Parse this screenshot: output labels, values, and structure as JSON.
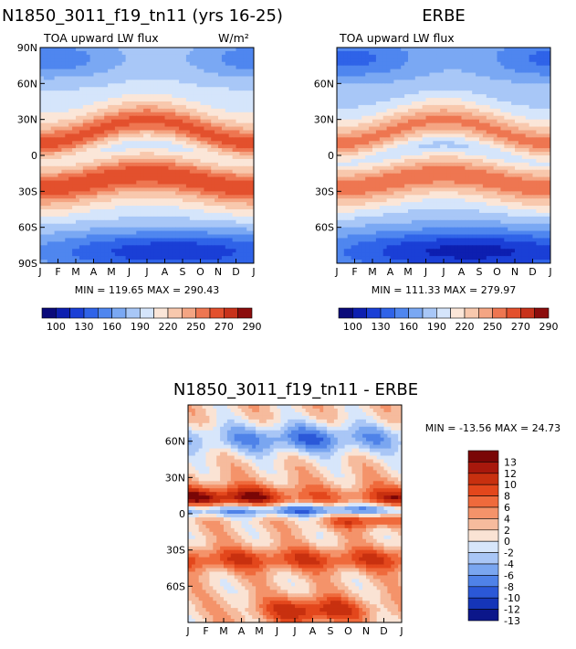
{
  "chart_data": [
    {
      "type": "heatmap",
      "title": "N1850_3011_f19_tn11 (yrs 16-25)",
      "subtitle": "TOA upward LW flux",
      "units": "W/m²",
      "x_ticks": [
        "J",
        "F",
        "M",
        "A",
        "M",
        "J",
        "J",
        "A",
        "S",
        "O",
        "N",
        "D",
        "J"
      ],
      "y_ticks": [
        "90N",
        "60N",
        "30N",
        "0",
        "30S",
        "60S",
        "90S"
      ],
      "y_range": [
        -90,
        90
      ],
      "min_max": "MIN = 119.65 MAX = 290.43",
      "colorbar_labels": [
        "100",
        "130",
        "160",
        "190",
        "220",
        "250",
        "270",
        "290"
      ]
    },
    {
      "type": "heatmap",
      "title": "ERBE",
      "subtitle": "TOA upward LW flux",
      "x_ticks": [
        "J",
        "F",
        "M",
        "A",
        "M",
        "J",
        "J",
        "A",
        "S",
        "O",
        "N",
        "D",
        "J"
      ],
      "y_ticks": [
        "60N",
        "30N",
        "0",
        "30S",
        "60S"
      ],
      "y_range": [
        -90,
        90
      ],
      "min_max": "MIN = 111.33 MAX = 279.97",
      "colorbar_labels": [
        "100",
        "130",
        "160",
        "190",
        "220",
        "250",
        "270",
        "290"
      ]
    },
    {
      "type": "heatmap",
      "title": "N1850_3011_f19_tn11 - ERBE",
      "x_ticks": [
        "J",
        "F",
        "M",
        "A",
        "M",
        "J",
        "J",
        "A",
        "S",
        "O",
        "N",
        "D",
        "J"
      ],
      "y_ticks": [
        "60N",
        "30N",
        "0",
        "30S",
        "60S"
      ],
      "y_range": [
        -90,
        90
      ],
      "min_max": "MIN = -13.56 MAX =  24.73",
      "colorbar_labels": [
        "13",
        "12",
        "10",
        "8",
        "6",
        "4",
        "2",
        "0",
        "-2",
        "-4",
        "-6",
        "-8",
        "-10",
        "-12",
        "-13"
      ]
    }
  ],
  "colors": {
    "abs_scale": [
      "#0a0a7a",
      "#0d1fb0",
      "#1a3fd6",
      "#2f63e8",
      "#4f86ef",
      "#7aa8f3",
      "#a8c7f7",
      "#d5e5fb",
      "#fbe6d8",
      "#f8c8ad",
      "#f4a583",
      "#ee7651",
      "#e3502d",
      "#c8321b",
      "#8c0d0d"
    ],
    "diff_scale": [
      "#7a0606",
      "#a8180c",
      "#c8300f",
      "#e3471c",
      "#ef6a3c",
      "#f4936a",
      "#f6bb9d",
      "#fae3d4",
      "#d7e6fb",
      "#a9c6f6",
      "#7aa6f0",
      "#4f82e8",
      "#2b58d8",
      "#1535b8",
      "#0b168a"
    ]
  }
}
